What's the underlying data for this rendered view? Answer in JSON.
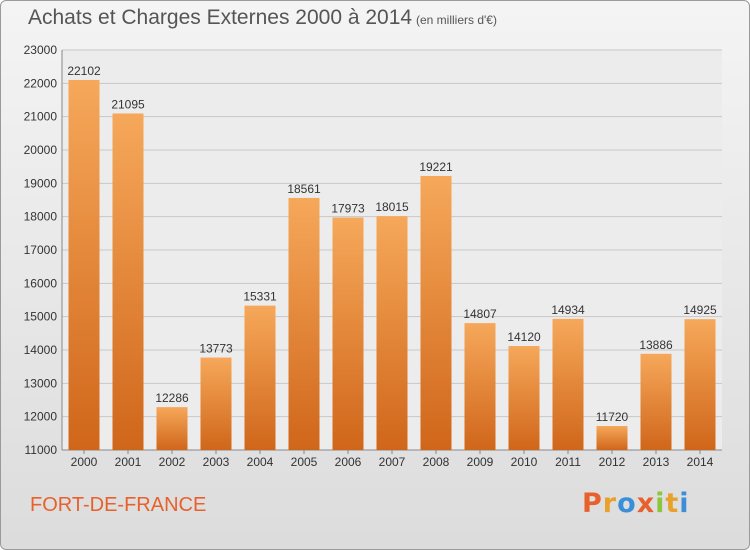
{
  "header": {
    "title": "Achats et Charges Externes 2000 à 2014",
    "unit": "(en milliers d'€)"
  },
  "footer": {
    "city": "FORT-DE-FRANCE",
    "logo": [
      "P",
      "r",
      "o",
      "x",
      "i",
      "t",
      "i"
    ],
    "logo_colors": [
      "#e8612c",
      "#e8a22c",
      "#3a8fd6",
      "#e8612c",
      "#8cc63f",
      "#e8a22c",
      "#3a8fd6"
    ]
  },
  "colors": {
    "bar_light": "#f6a85a",
    "bar_dark": "#d0661a",
    "grid": "#c8c8c8",
    "text": "#333333",
    "plot_bg": "#ececec"
  },
  "chart_data": {
    "type": "bar",
    "categories": [
      "2000",
      "2001",
      "2002",
      "2003",
      "2004",
      "2005",
      "2006",
      "2007",
      "2008",
      "2009",
      "2010",
      "2011",
      "2012",
      "2013",
      "2014"
    ],
    "values": [
      22102,
      21095,
      12286,
      13773,
      15331,
      18561,
      17973,
      18015,
      19221,
      14807,
      14120,
      14934,
      11720,
      13886,
      14925
    ],
    "yticks": [
      11000,
      12000,
      13000,
      14000,
      15000,
      16000,
      17000,
      18000,
      19000,
      20000,
      21000,
      22000,
      23000
    ],
    "ylim": [
      11000,
      23000
    ],
    "grid": true,
    "data_labels": true
  }
}
